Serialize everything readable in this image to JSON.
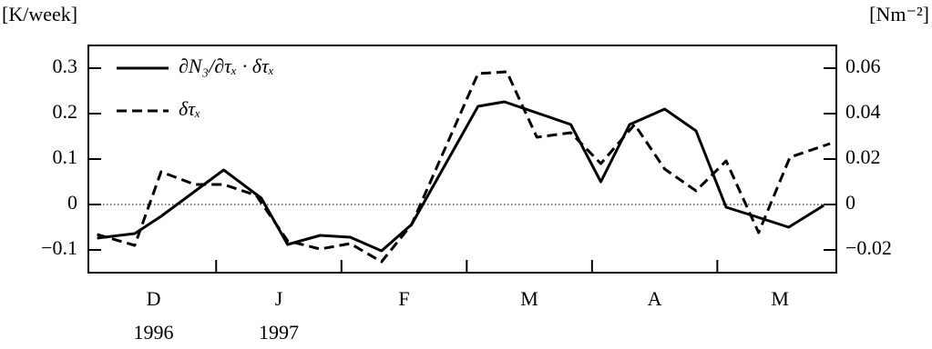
{
  "chart_data": {
    "type": "line",
    "y_unit": "[K/week]",
    "y2_unit": "[Nm⁻²]",
    "month_labels": [
      "D",
      "J",
      "F",
      "M",
      "A",
      "M"
    ],
    "year_labels": [
      "1996",
      "1997"
    ],
    "xlim": [
      -0.02,
      5.95
    ],
    "xticks": [
      1,
      2,
      3,
      4,
      5
    ],
    "ylim": [
      -0.15,
      0.35
    ],
    "yticks": [
      {
        "value": -0.1,
        "label": "−0.1"
      },
      0,
      0.1,
      0.2,
      0.3
    ],
    "y2lim": [
      -0.03,
      0.07
    ],
    "y2ticks": [
      {
        "value": -0.02,
        "label": "−0.02"
      },
      0,
      0.02,
      0.04,
      0.06
    ],
    "zero_line": true,
    "legend": "upper left",
    "series": [
      {
        "name": "∂N₃/∂τₓ · δτₓ",
        "color": "#000000",
        "dash": "solid",
        "x": [
          0.05,
          0.35,
          0.56,
          1.06,
          1.36,
          1.57,
          1.83,
          2.07,
          2.32,
          2.56,
          3.09,
          3.3,
          3.62,
          3.83,
          4.07,
          4.3,
          4.58,
          4.83,
          5.07,
          5.3,
          5.57,
          5.85
        ],
        "values": [
          -0.074,
          -0.064,
          -0.026,
          0.076,
          0.014,
          -0.088,
          -0.068,
          -0.072,
          -0.102,
          -0.044,
          0.216,
          0.226,
          0.196,
          0.176,
          0.05,
          0.176,
          0.21,
          0.162,
          -0.006,
          -0.026,
          -0.05,
          -0.002
        ]
      },
      {
        "name": "δτₓ",
        "color": "#000000",
        "dash": "dashed",
        "axis": "y2",
        "x": [
          0.05,
          0.35,
          0.56,
          0.83,
          1.06,
          1.32,
          1.57,
          1.83,
          2.07,
          2.32,
          2.56,
          3.09,
          3.32,
          3.56,
          3.83,
          4.07,
          4.34,
          4.58,
          4.83,
          5.07,
          5.33,
          5.58,
          5.9
        ],
        "values": [
          -0.0132,
          -0.018,
          0.0144,
          0.0088,
          0.0088,
          0.004,
          -0.016,
          -0.0196,
          -0.0172,
          -0.0252,
          -0.0088,
          0.0576,
          0.0584,
          0.0296,
          0.0316,
          0.018,
          0.0352,
          0.0156,
          0.006,
          0.0192,
          -0.0124,
          0.0208,
          0.0268
        ]
      }
    ]
  }
}
